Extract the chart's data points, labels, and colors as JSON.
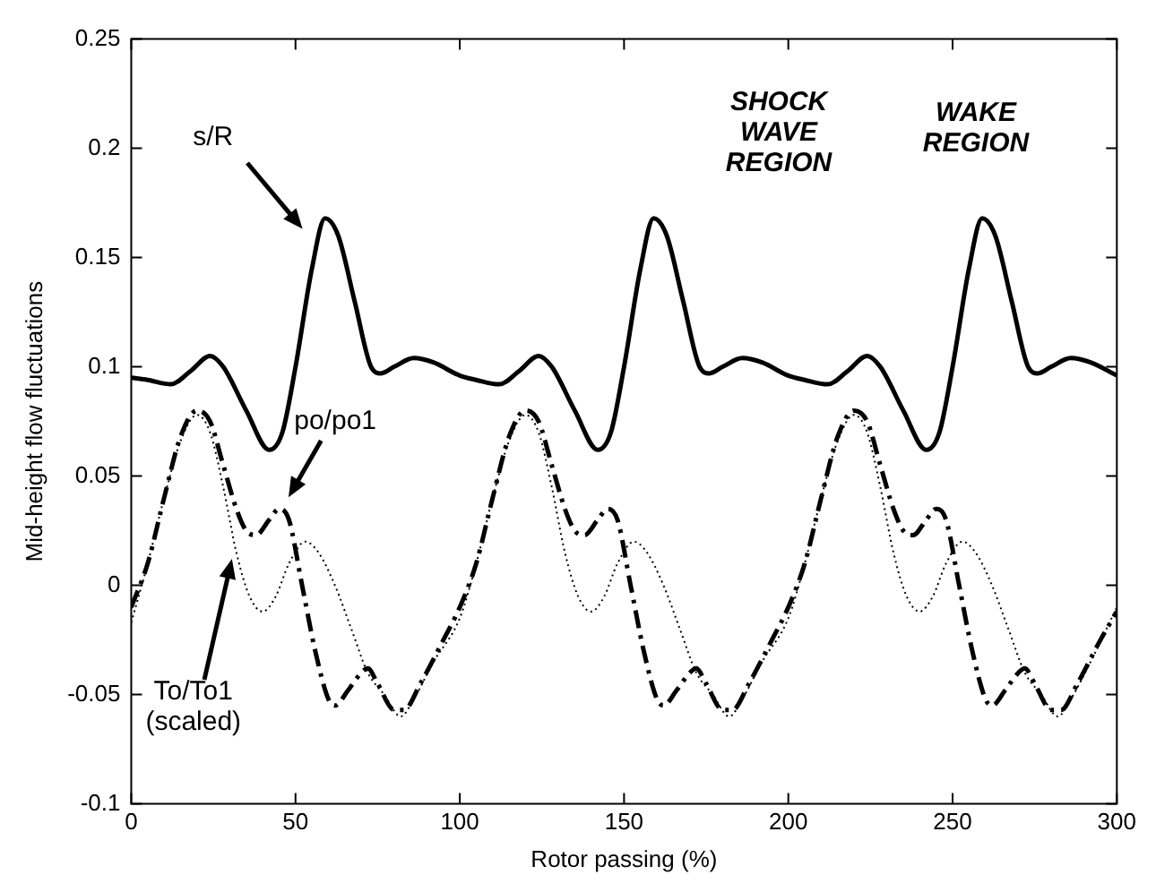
{
  "chart_data": {
    "type": "line",
    "xlabel": "Rotor passing (%)",
    "ylabel": "Mid-height flow fluctuations",
    "xlim": [
      0,
      300
    ],
    "ylim": [
      -0.1,
      0.25
    ],
    "xticks": [
      0,
      50,
      100,
      150,
      200,
      250,
      300
    ],
    "yticks": [
      -0.1,
      -0.05,
      0,
      0.05,
      0.1,
      0.15,
      0.2,
      0.25
    ],
    "grid": false,
    "legend": false,
    "marker": "none",
    "series": [
      {
        "color": "#000000",
        "line_style": "solid",
        "x": [
          0,
          5,
          12,
          18,
          24,
          28,
          35,
          42,
          46,
          50,
          55,
          59,
          63,
          68,
          73,
          76,
          80,
          86,
          92,
          100,
          105,
          112,
          118,
          124,
          128,
          135,
          142,
          146,
          150,
          155,
          159,
          163,
          168,
          173,
          176,
          180,
          186,
          192,
          200,
          205,
          212,
          218,
          224,
          228,
          235,
          242,
          246,
          250,
          255,
          259,
          263,
          268,
          273,
          276,
          280,
          286,
          292,
          300
        ],
        "values": [
          0.095,
          0.094,
          0.092,
          0.098,
          0.105,
          0.1,
          0.08,
          0.062,
          0.07,
          0.1,
          0.145,
          0.168,
          0.16,
          0.13,
          0.1,
          0.097,
          0.1,
          0.104,
          0.102,
          0.096,
          0.094,
          0.092,
          0.098,
          0.105,
          0.1,
          0.08,
          0.062,
          0.07,
          0.1,
          0.145,
          0.168,
          0.16,
          0.13,
          0.1,
          0.097,
          0.1,
          0.104,
          0.102,
          0.096,
          0.094,
          0.092,
          0.098,
          0.105,
          0.1,
          0.08,
          0.062,
          0.07,
          0.1,
          0.145,
          0.168,
          0.16,
          0.13,
          0.1,
          0.097,
          0.1,
          0.104,
          0.102,
          0.096
        ]
      },
      {
        "color": "#000000",
        "line_style": "dashed",
        "x": [
          0,
          5,
          10,
          15,
          20,
          24,
          28,
          32,
          35,
          38,
          42,
          45,
          48,
          52,
          56,
          60,
          62,
          66,
          70,
          72,
          75,
          80,
          83,
          88,
          95,
          100,
          105,
          110,
          115,
          120,
          124,
          128,
          132,
          135,
          138,
          142,
          145,
          148,
          152,
          156,
          160,
          162,
          166,
          170,
          172,
          175,
          180,
          183,
          188,
          195,
          200,
          205,
          210,
          215,
          220,
          224,
          228,
          232,
          235,
          238,
          242,
          245,
          248,
          252,
          256,
          260,
          262,
          266,
          270,
          272,
          275,
          280,
          283,
          288,
          295,
          300
        ],
        "values": [
          -0.01,
          0.01,
          0.04,
          0.068,
          0.08,
          0.075,
          0.055,
          0.035,
          0.025,
          0.023,
          0.03,
          0.035,
          0.03,
          0,
          -0.03,
          -0.052,
          -0.055,
          -0.048,
          -0.04,
          -0.038,
          -0.045,
          -0.057,
          -0.057,
          -0.045,
          -0.025,
          -0.01,
          0.01,
          0.04,
          0.068,
          0.08,
          0.075,
          0.055,
          0.035,
          0.025,
          0.023,
          0.03,
          0.035,
          0.03,
          0,
          -0.03,
          -0.052,
          -0.055,
          -0.048,
          -0.04,
          -0.038,
          -0.045,
          -0.057,
          -0.057,
          -0.045,
          -0.025,
          -0.01,
          0.01,
          0.04,
          0.068,
          0.08,
          0.075,
          0.055,
          0.035,
          0.025,
          0.023,
          0.03,
          0.035,
          0.03,
          0,
          -0.03,
          -0.052,
          -0.055,
          -0.048,
          -0.04,
          -0.038,
          -0.045,
          -0.057,
          -0.057,
          -0.045,
          -0.025,
          -0.012
        ]
      },
      {
        "color": "#000000",
        "line_style": "dotted",
        "x": [
          0,
          5,
          10,
          15,
          20,
          24,
          28,
          32,
          36,
          40,
          44,
          48,
          53,
          57,
          62,
          67,
          72,
          77,
          82,
          86,
          92,
          100,
          105,
          110,
          115,
          120,
          124,
          128,
          132,
          136,
          140,
          144,
          148,
          153,
          157,
          162,
          167,
          172,
          177,
          182,
          186,
          192,
          200,
          205,
          210,
          215,
          220,
          224,
          228,
          232,
          236,
          240,
          244,
          248,
          253,
          257,
          262,
          267,
          272,
          277,
          282,
          286,
          292,
          300
        ],
        "values": [
          -0.017,
          0.01,
          0.04,
          0.066,
          0.078,
          0.07,
          0.045,
          0.015,
          -0.005,
          -0.012,
          -0.005,
          0.01,
          0.02,
          0.015,
          0,
          -0.02,
          -0.04,
          -0.05,
          -0.06,
          -0.052,
          -0.035,
          -0.015,
          0.01,
          0.04,
          0.066,
          0.078,
          0.07,
          0.045,
          0.015,
          -0.005,
          -0.012,
          -0.005,
          0.01,
          0.02,
          0.015,
          0,
          -0.02,
          -0.04,
          -0.05,
          -0.06,
          -0.052,
          -0.035,
          -0.015,
          0.01,
          0.04,
          0.066,
          0.078,
          0.07,
          0.045,
          0.015,
          -0.005,
          -0.012,
          -0.005,
          0.01,
          0.02,
          0.015,
          0,
          -0.02,
          -0.04,
          -0.05,
          -0.06,
          -0.052,
          -0.035,
          -0.01
        ]
      }
    ],
    "annotations": [
      "s/R",
      "po/po1",
      "To/To1 (scaled)",
      "SHOCK WAVE REGION",
      "WAKE REGION"
    ]
  }
}
